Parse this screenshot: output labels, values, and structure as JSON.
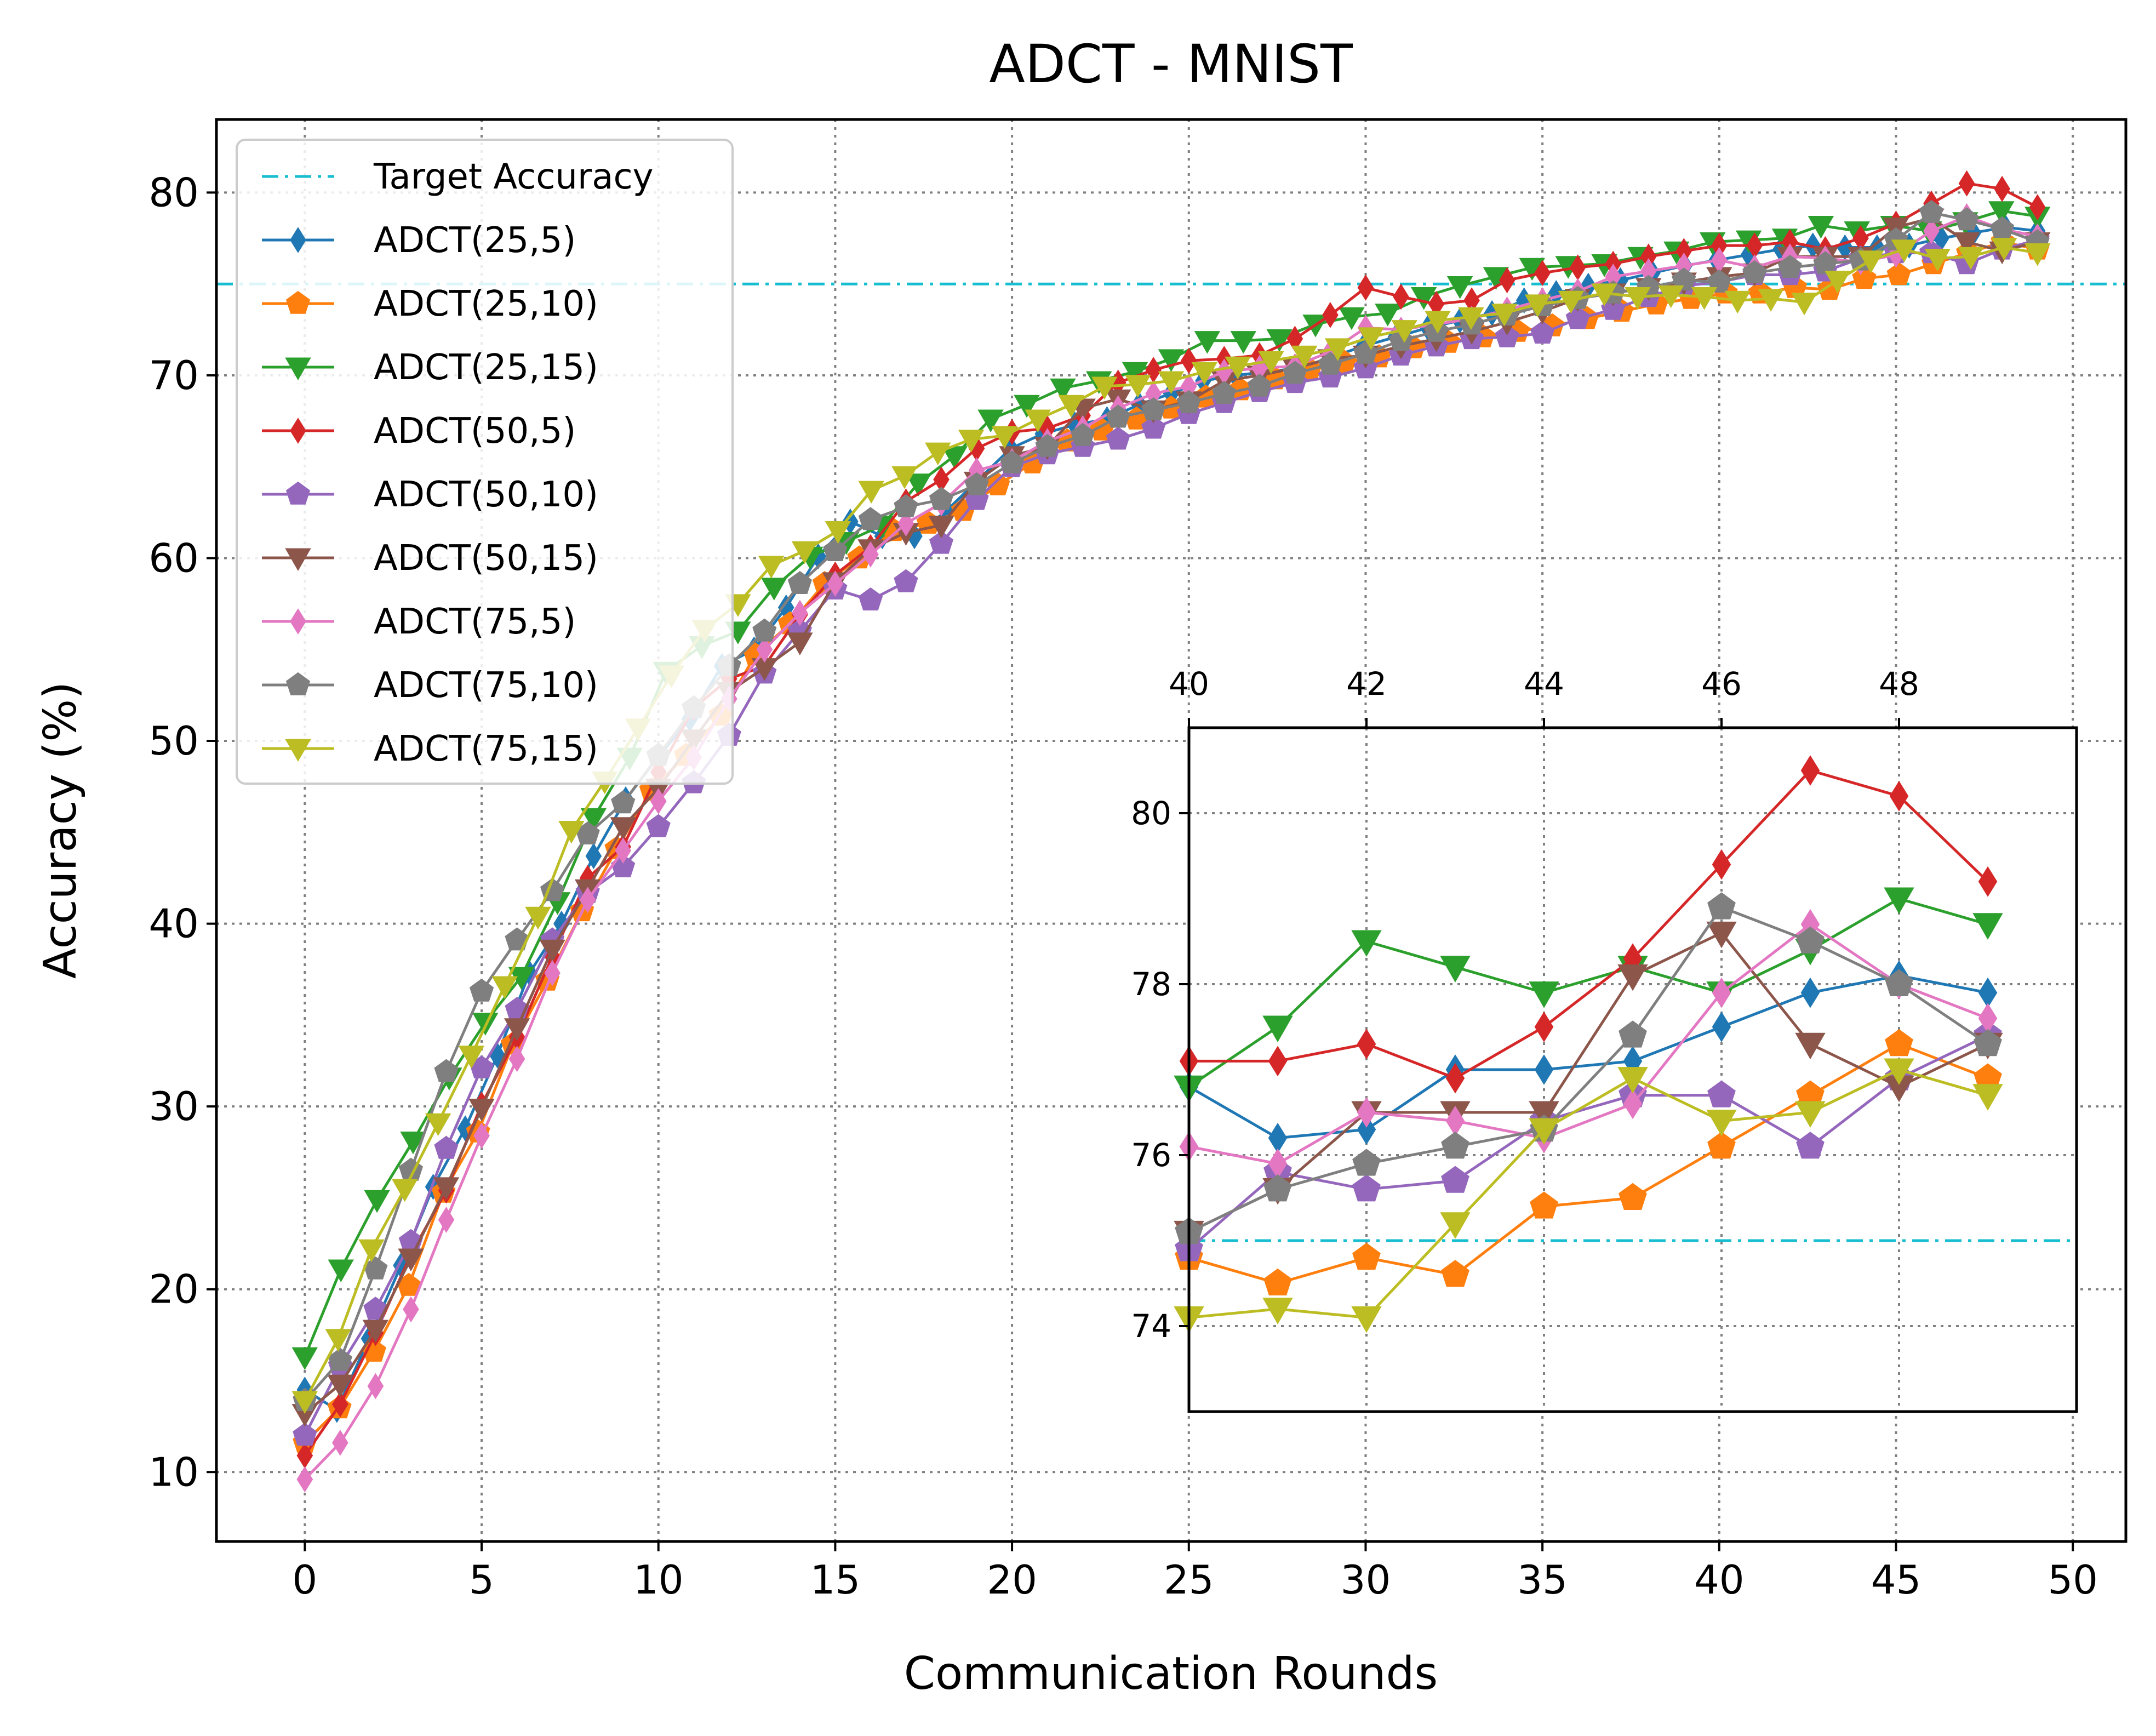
{
  "chart_data": {
    "type": "line",
    "title": "ADCT - MNIST",
    "xlabel": "Communication Rounds",
    "ylabel": "Accuracy (%)",
    "xlim": [
      -2.5,
      51.5
    ],
    "ylim": [
      6.2,
      84.0
    ],
    "xticks": [
      0,
      5,
      10,
      15,
      20,
      25,
      30,
      35,
      40,
      45,
      50
    ],
    "yticks": [
      10,
      20,
      30,
      40,
      50,
      60,
      70,
      80
    ],
    "grid": true,
    "legend_position": "upper-left",
    "target": {
      "name": "Target Accuracy",
      "value": 75,
      "color": "#17becf"
    },
    "series": [
      {
        "name": "ADCT(25,5)",
        "color": "#1f77b4",
        "marker": "thin_diamond",
        "values": [
          14.5,
          13.4,
          17.3,
          21.3,
          25.6,
          28.8,
          32.8,
          37.3,
          40.0,
          43.7,
          46.8,
          49.1,
          51.2,
          54.1,
          55.0,
          57.3,
          60.1,
          62.0,
          61.2,
          61.2,
          62.6,
          64.3,
          66.0,
          66.8,
          67.3,
          67.6,
          68.4,
          69.0,
          69.7,
          70.0,
          70.2,
          70.4,
          71.0,
          71.6,
          72.1,
          72.6,
          73.0,
          73.4,
          74.1,
          74.5,
          74.9,
          75.2,
          75.6,
          76.0,
          76.3,
          76.6,
          76.9,
          77.1,
          77.0,
          77.0,
          77.1,
          77.5,
          77.8,
          78.1,
          77.9
        ]
      },
      {
        "name": "ADCT(25,10)",
        "color": "#ff7f0e",
        "marker": "pentagon",
        "values": [
          11.6,
          13.5,
          16.6,
          20.2,
          25.3,
          28.6,
          33.4,
          36.9,
          40.7,
          44.1,
          47.3,
          49.2,
          51.4,
          54.7,
          56.4,
          58.6,
          60.0,
          61.5,
          61.9,
          62.6,
          64.0,
          65.2,
          66.4,
          67.0,
          67.6,
          68.2,
          68.8,
          69.2,
          69.8,
          70.3,
          70.7,
          71.0,
          71.5,
          71.8,
          72.1,
          72.4,
          72.7,
          73.1,
          73.5,
          73.9,
          74.2,
          74.5,
          74.5,
          74.8,
          74.7,
          75.3,
          75.5,
          76.1,
          76.7,
          77.3,
          76.9
        ]
      },
      {
        "name": "ADCT(25,15)",
        "color": "#2ca02c",
        "marker": "triangle_down",
        "values": [
          16.3,
          21.1,
          24.9,
          28.1,
          31.6,
          34.6,
          37.1,
          41.2,
          45.8,
          49.1,
          53.8,
          55.2,
          56.0,
          58.4,
          60.1,
          60.9,
          61.8,
          64.1,
          65.6,
          67.6,
          68.4,
          69.3,
          69.7,
          70.2,
          70.9,
          71.9,
          71.9,
          72.0,
          72.8,
          73.2,
          73.4,
          74.3,
          74.9,
          75.4,
          75.9,
          76.0,
          76.1,
          76.5,
          76.8,
          77.3,
          77.4,
          77.5,
          78.2,
          77.9,
          78.2,
          77.9,
          78.4,
          79.0,
          78.7
        ]
      },
      {
        "name": "ADCT(50,5)",
        "color": "#d62728",
        "marker": "thin_diamond",
        "values": [
          10.9,
          13.7,
          17.6,
          21.9,
          25.4,
          30.1,
          33.8,
          38.2,
          42.5,
          44.2,
          48.3,
          51.8,
          53.4,
          54.1,
          56.9,
          59.1,
          60.6,
          63.1,
          64.3,
          66.0,
          66.9,
          67.1,
          67.8,
          69.6,
          70.3,
          70.8,
          70.9,
          71.1,
          72.0,
          73.3,
          74.8,
          74.3,
          73.9,
          74.1,
          75.2,
          75.6,
          75.9,
          76.1,
          76.5,
          76.8,
          77.1,
          77.1,
          77.3,
          76.9,
          77.5,
          78.3,
          79.4,
          80.5,
          80.2,
          79.2
        ]
      },
      {
        "name": "ADCT(50,10)",
        "color": "#9467bd",
        "marker": "pentagon",
        "values": [
          12.0,
          15.8,
          18.9,
          22.6,
          27.7,
          32.1,
          35.3,
          39.1,
          41.7,
          43.1,
          45.3,
          47.7,
          50.3,
          53.7,
          56.0,
          58.3,
          57.7,
          58.7,
          60.8,
          63.2,
          65.0,
          65.7,
          66.1,
          66.5,
          67.1,
          67.9,
          68.5,
          69.1,
          69.6,
          69.9,
          70.4,
          71.1,
          71.6,
          72.0,
          72.1,
          72.3,
          73.1,
          73.6,
          74.3,
          74.9,
          75.1,
          75.5,
          75.5,
          75.7,
          76.4,
          76.7,
          76.7,
          76.1,
          76.9,
          77.4
        ]
      },
      {
        "name": "ADCT(50,15)",
        "color": "#8c564b",
        "marker": "triangle_down",
        "values": [
          13.2,
          14.8,
          17.8,
          21.7,
          25.6,
          29.9,
          34.3,
          38.6,
          41.9,
          45.3,
          47.4,
          50.1,
          52.7,
          54.0,
          55.4,
          58.7,
          60.5,
          61.4,
          61.8,
          64.2,
          65.6,
          66.1,
          68.2,
          68.7,
          68.1,
          68.6,
          69.7,
          70.0,
          70.4,
          70.9,
          71.1,
          71.6,
          72.0,
          72.4,
          72.9,
          73.5,
          74.2,
          74.5,
          74.8,
          75.1,
          75.4,
          75.6,
          76.5,
          76.5,
          76.5,
          78.1,
          78.6,
          77.3,
          76.8,
          77.3
        ]
      },
      {
        "name": "ADCT(75,5)",
        "color": "#e377c2",
        "marker": "thin_diamond",
        "values": [
          9.6,
          11.6,
          14.7,
          18.9,
          23.8,
          28.4,
          32.6,
          37.3,
          41.3,
          44.0,
          46.7,
          49.1,
          52.3,
          55.0,
          57.0,
          58.6,
          60.2,
          61.9,
          63.0,
          64.8,
          65.3,
          66.4,
          67.1,
          68.2,
          69.0,
          69.4,
          70.2,
          70.4,
          70.5,
          71.3,
          72.6,
          72.5,
          72.8,
          73.1,
          73.6,
          74.1,
          74.6,
          75.4,
          75.7,
          76.0,
          76.3,
          75.9,
          76.5,
          76.4,
          76.2,
          76.6,
          77.9,
          78.7,
          78.0,
          77.6
        ]
      },
      {
        "name": "ADCT(75,10)",
        "color": "#7f7f7f",
        "marker": "pentagon",
        "values": [
          13.9,
          16.1,
          21.1,
          26.5,
          31.9,
          36.3,
          39.1,
          41.8,
          44.9,
          46.6,
          49.2,
          51.8,
          54.1,
          56.0,
          58.6,
          60.4,
          62.1,
          62.8,
          63.2,
          64.0,
          65.2,
          66.1,
          66.7,
          67.7,
          68.1,
          68.5,
          69.0,
          69.4,
          70.1,
          70.6,
          71.2,
          71.9,
          72.4,
          72.8,
          73.3,
          73.8,
          74.2,
          74.5,
          74.8,
          75.2,
          75.1,
          75.6,
          75.9,
          76.1,
          76.3,
          77.4,
          78.9,
          78.5,
          78.0,
          77.3
        ]
      },
      {
        "name": "ADCT(75,15)",
        "color": "#bcbd22",
        "marker": "triangle_down",
        "values": [
          13.9,
          17.3,
          22.2,
          25.5,
          29.1,
          32.8,
          36.6,
          40.4,
          45.1,
          47.8,
          50.7,
          53.6,
          56.1,
          57.5,
          59.6,
          60.4,
          61.5,
          63.7,
          64.5,
          65.8,
          66.5,
          66.7,
          67.6,
          68.4,
          69.4,
          69.5,
          69.7,
          70.2,
          70.5,
          70.8,
          71.1,
          71.5,
          72.1,
          72.5,
          73.0,
          73.2,
          73.4,
          73.9,
          74.1,
          74.5,
          74.3,
          74.4,
          74.3,
          74.1,
          74.2,
          74.0,
          75.2,
          76.3,
          76.9,
          76.4,
          76.5,
          77.0,
          76.7
        ]
      }
    ],
    "inset": {
      "xlim": [
        40,
        50
      ],
      "ylim": [
        73.0,
        81.0
      ],
      "xticks": [
        40,
        42,
        44,
        46,
        48
      ],
      "yticks": [
        74,
        76,
        78,
        80
      ],
      "series": [
        {
          "name": "ADCT(25,5)",
          "values": [
            76.8,
            76.2,
            76.3,
            77.0,
            77.0,
            77.1,
            77.5,
            77.9,
            78.1,
            77.9
          ]
        },
        {
          "name": "ADCT(25,10)",
          "values": [
            74.8,
            74.5,
            74.8,
            74.6,
            75.4,
            75.5,
            76.1,
            76.7,
            77.3,
            76.9
          ]
        },
        {
          "name": "ADCT(25,15)",
          "values": [
            76.8,
            77.5,
            78.5,
            78.2,
            77.9,
            78.2,
            77.9,
            78.4,
            79.0,
            78.7
          ]
        },
        {
          "name": "ADCT(50,5)",
          "values": [
            77.1,
            77.1,
            77.3,
            76.9,
            77.5,
            78.3,
            79.4,
            80.5,
            80.2,
            79.2
          ]
        },
        {
          "name": "ADCT(50,10)",
          "values": [
            74.9,
            75.8,
            75.6,
            75.7,
            76.4,
            76.7,
            76.7,
            76.1,
            76.9,
            77.4
          ]
        },
        {
          "name": "ADCT(50,15)",
          "values": [
            75.1,
            75.6,
            76.5,
            76.5,
            76.5,
            78.1,
            78.6,
            77.3,
            76.8,
            77.3
          ]
        },
        {
          "name": "ADCT(75,5)",
          "values": [
            76.1,
            75.9,
            76.5,
            76.4,
            76.2,
            76.6,
            77.9,
            78.7,
            78.0,
            77.6
          ]
        },
        {
          "name": "ADCT(75,10)",
          "values": [
            75.1,
            75.6,
            75.9,
            76.1,
            76.3,
            77.4,
            78.9,
            78.5,
            78.0,
            77.3
          ]
        },
        {
          "name": "ADCT(75,15)",
          "values": [
            74.1,
            74.2,
            74.1,
            75.2,
            76.3,
            76.9,
            76.4,
            76.5,
            77.0,
            76.7
          ]
        }
      ]
    }
  }
}
